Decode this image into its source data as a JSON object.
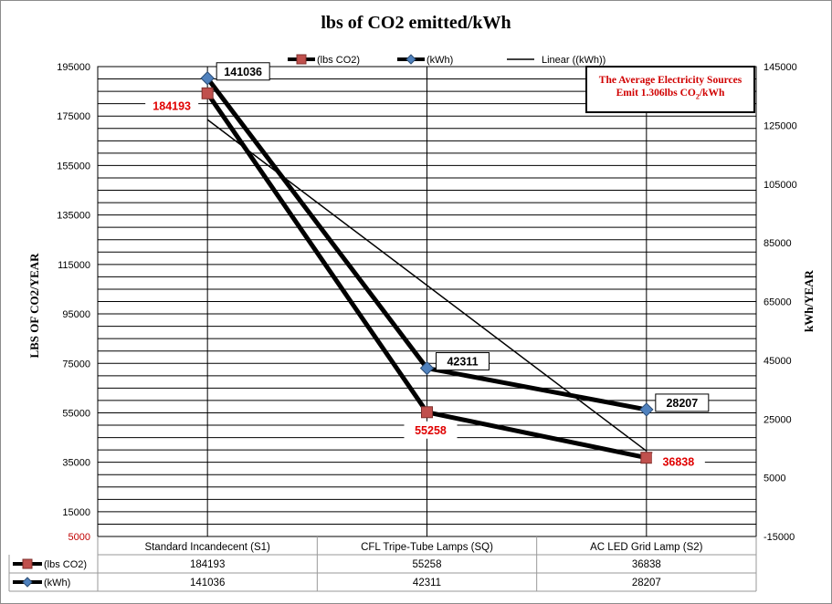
{
  "chart_data": {
    "type": "line",
    "title": "lbs of CO2 emitted/kWh",
    "ylabel": "LBS OF CO2/YEAR",
    "y2label": "kWh/YEAR",
    "categories": [
      "Standard Incandecent (S1)",
      "CFL  Tripe-Tube Lamps (SQ)",
      "AC LED Grid Lamp (S2)"
    ],
    "ylim": [
      5000,
      195000
    ],
    "y2lim": [
      -15000,
      145000
    ],
    "yticks": [
      "195000",
      "175000",
      "155000",
      "135000",
      "115000",
      "95000",
      "75000",
      "55000",
      "35000",
      "15000",
      "5000"
    ],
    "y2ticks": [
      "145000",
      "125000",
      "105000",
      "85000",
      "65000",
      "45000",
      "25000",
      "5000",
      "-15000"
    ],
    "series": [
      {
        "name": "(lbs CO2)",
        "axis": "left",
        "values": [
          184193,
          55258,
          36838
        ],
        "color": "#c0504d",
        "marker": "square"
      },
      {
        "name": "(kWh)",
        "axis": "right",
        "values": [
          141036,
          42311,
          28207
        ],
        "color": "#4f81bd",
        "marker": "diamond"
      }
    ],
    "trendline": {
      "name": "Linear ((kWh))",
      "of": "(kWh)"
    },
    "legend_position": "top",
    "grid": true,
    "data_table": true
  },
  "annotation": {
    "line1": "The Average Electricity Sources",
    "line2_prefix": "Emit 1.306lbs CO",
    "line2_sub": "2",
    "line2_suffix": "/kWh"
  },
  "colors": {
    "co2_label": "#e00000",
    "kwh_label": "#000000"
  }
}
